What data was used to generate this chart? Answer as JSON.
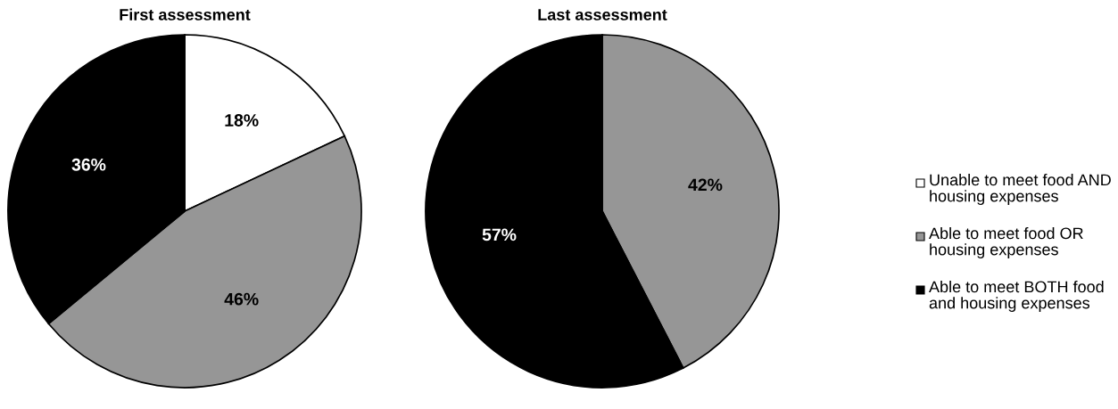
{
  "chart_data": [
    {
      "type": "pie",
      "title": "First assessment",
      "categories": [
        "Unable to meet food AND housing expenses",
        "Able to meet food OR housing expenses",
        "Able to meet BOTH food and housing expenses"
      ],
      "values": [
        18,
        46,
        36
      ],
      "colors": [
        "#ffffff",
        "#969696",
        "#000000"
      ],
      "value_labels": [
        "18%",
        "46%",
        "36%"
      ],
      "legend": "right"
    },
    {
      "type": "pie",
      "title": "Last assessment",
      "values": [
        42,
        57
      ],
      "colors": [
        "#969696",
        "#000000"
      ],
      "value_labels": [
        "42%",
        "57%"
      ]
    }
  ]
}
